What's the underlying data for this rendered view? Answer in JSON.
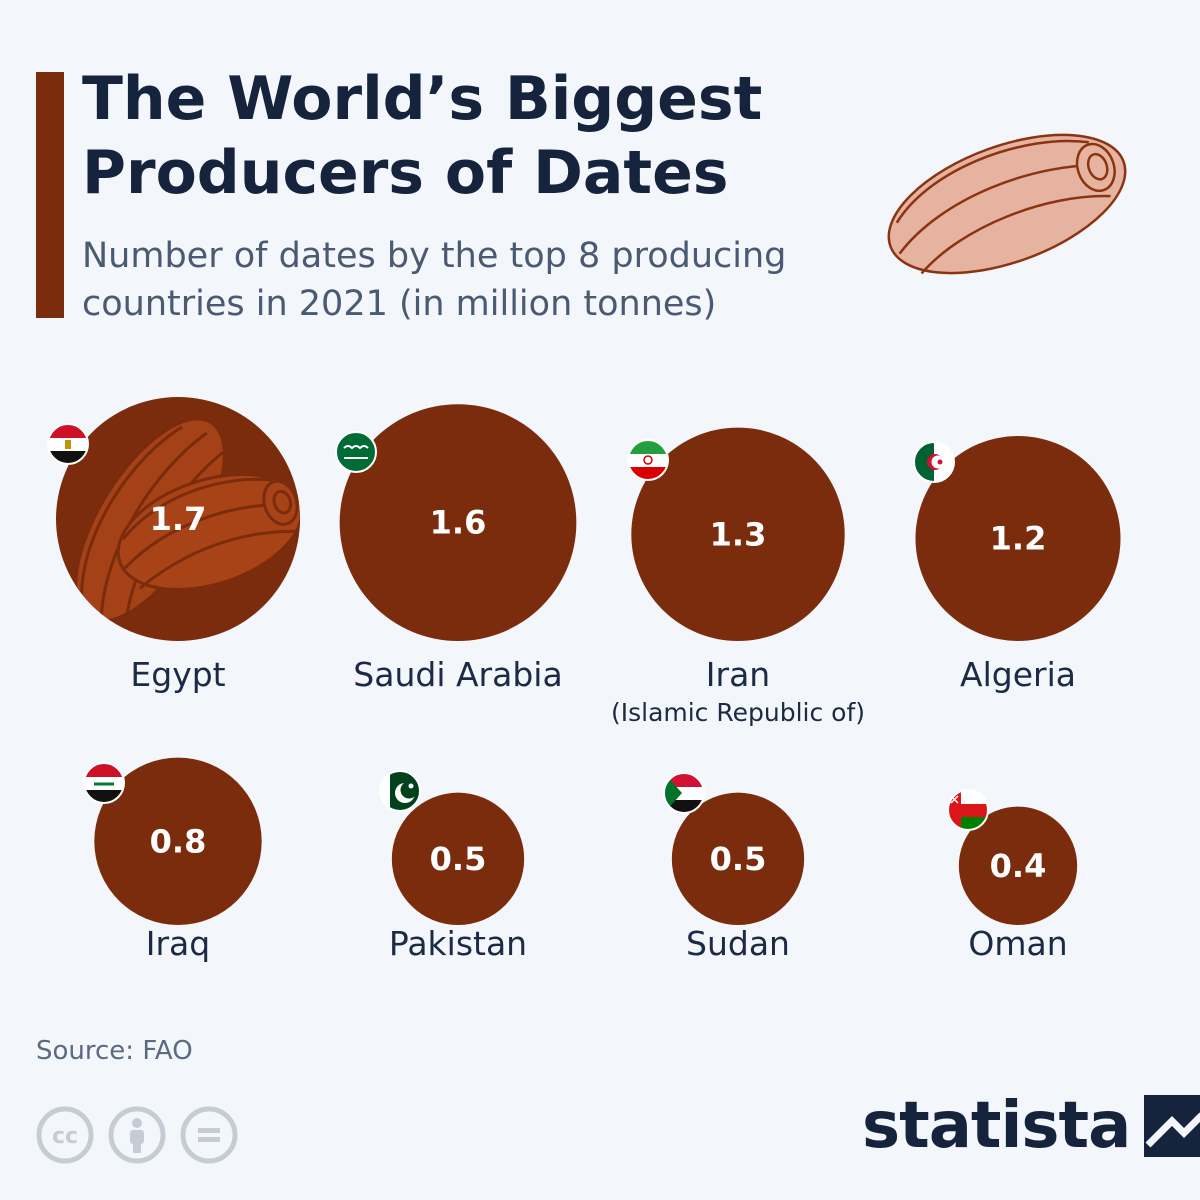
{
  "header": {
    "title_line1": "The World’s Biggest",
    "title_line2": "Producers of Dates",
    "subtitle_line1": "Number of dates by the top 8 producing",
    "subtitle_line2": "countries in 2021 (in million tonnes)"
  },
  "colors": {
    "bubble": "#7b2c0c",
    "bubble_highlight": "#a84318",
    "accent": "#7b2c0c",
    "date_illustration_fill": "#e6b3a0",
    "date_illustration_stroke": "#8a3412"
  },
  "chart_data": {
    "type": "bubble",
    "unit": "million tonnes",
    "items": [
      {
        "country": "Egypt",
        "sublabel": "",
        "value": 1.7,
        "value_label": "1.7",
        "flag": "egypt-flag"
      },
      {
        "country": "Saudi Arabia",
        "sublabel": "",
        "value": 1.6,
        "value_label": "1.6",
        "flag": "saudi-arabia-flag"
      },
      {
        "country": "Iran",
        "sublabel": "(Islamic Republic of)",
        "value": 1.3,
        "value_label": "1.3",
        "flag": "iran-flag"
      },
      {
        "country": "Algeria",
        "sublabel": "",
        "value": 1.2,
        "value_label": "1.2",
        "flag": "algeria-flag"
      },
      {
        "country": "Iraq",
        "sublabel": "",
        "value": 0.8,
        "value_label": "0.8",
        "flag": "iraq-flag"
      },
      {
        "country": "Pakistan",
        "sublabel": "",
        "value": 0.5,
        "value_label": "0.5",
        "flag": "pakistan-flag"
      },
      {
        "country": "Sudan",
        "sublabel": "",
        "value": 0.5,
        "value_label": "0.5",
        "flag": "sudan-flag"
      },
      {
        "country": "Oman",
        "sublabel": "",
        "value": 0.4,
        "value_label": "0.4",
        "flag": "oman-flag"
      }
    ]
  },
  "footer": {
    "source": "Source: FAO",
    "license_icons": [
      "cc-icon",
      "attribution-icon",
      "no-derivatives-icon"
    ],
    "brand": "statista"
  }
}
